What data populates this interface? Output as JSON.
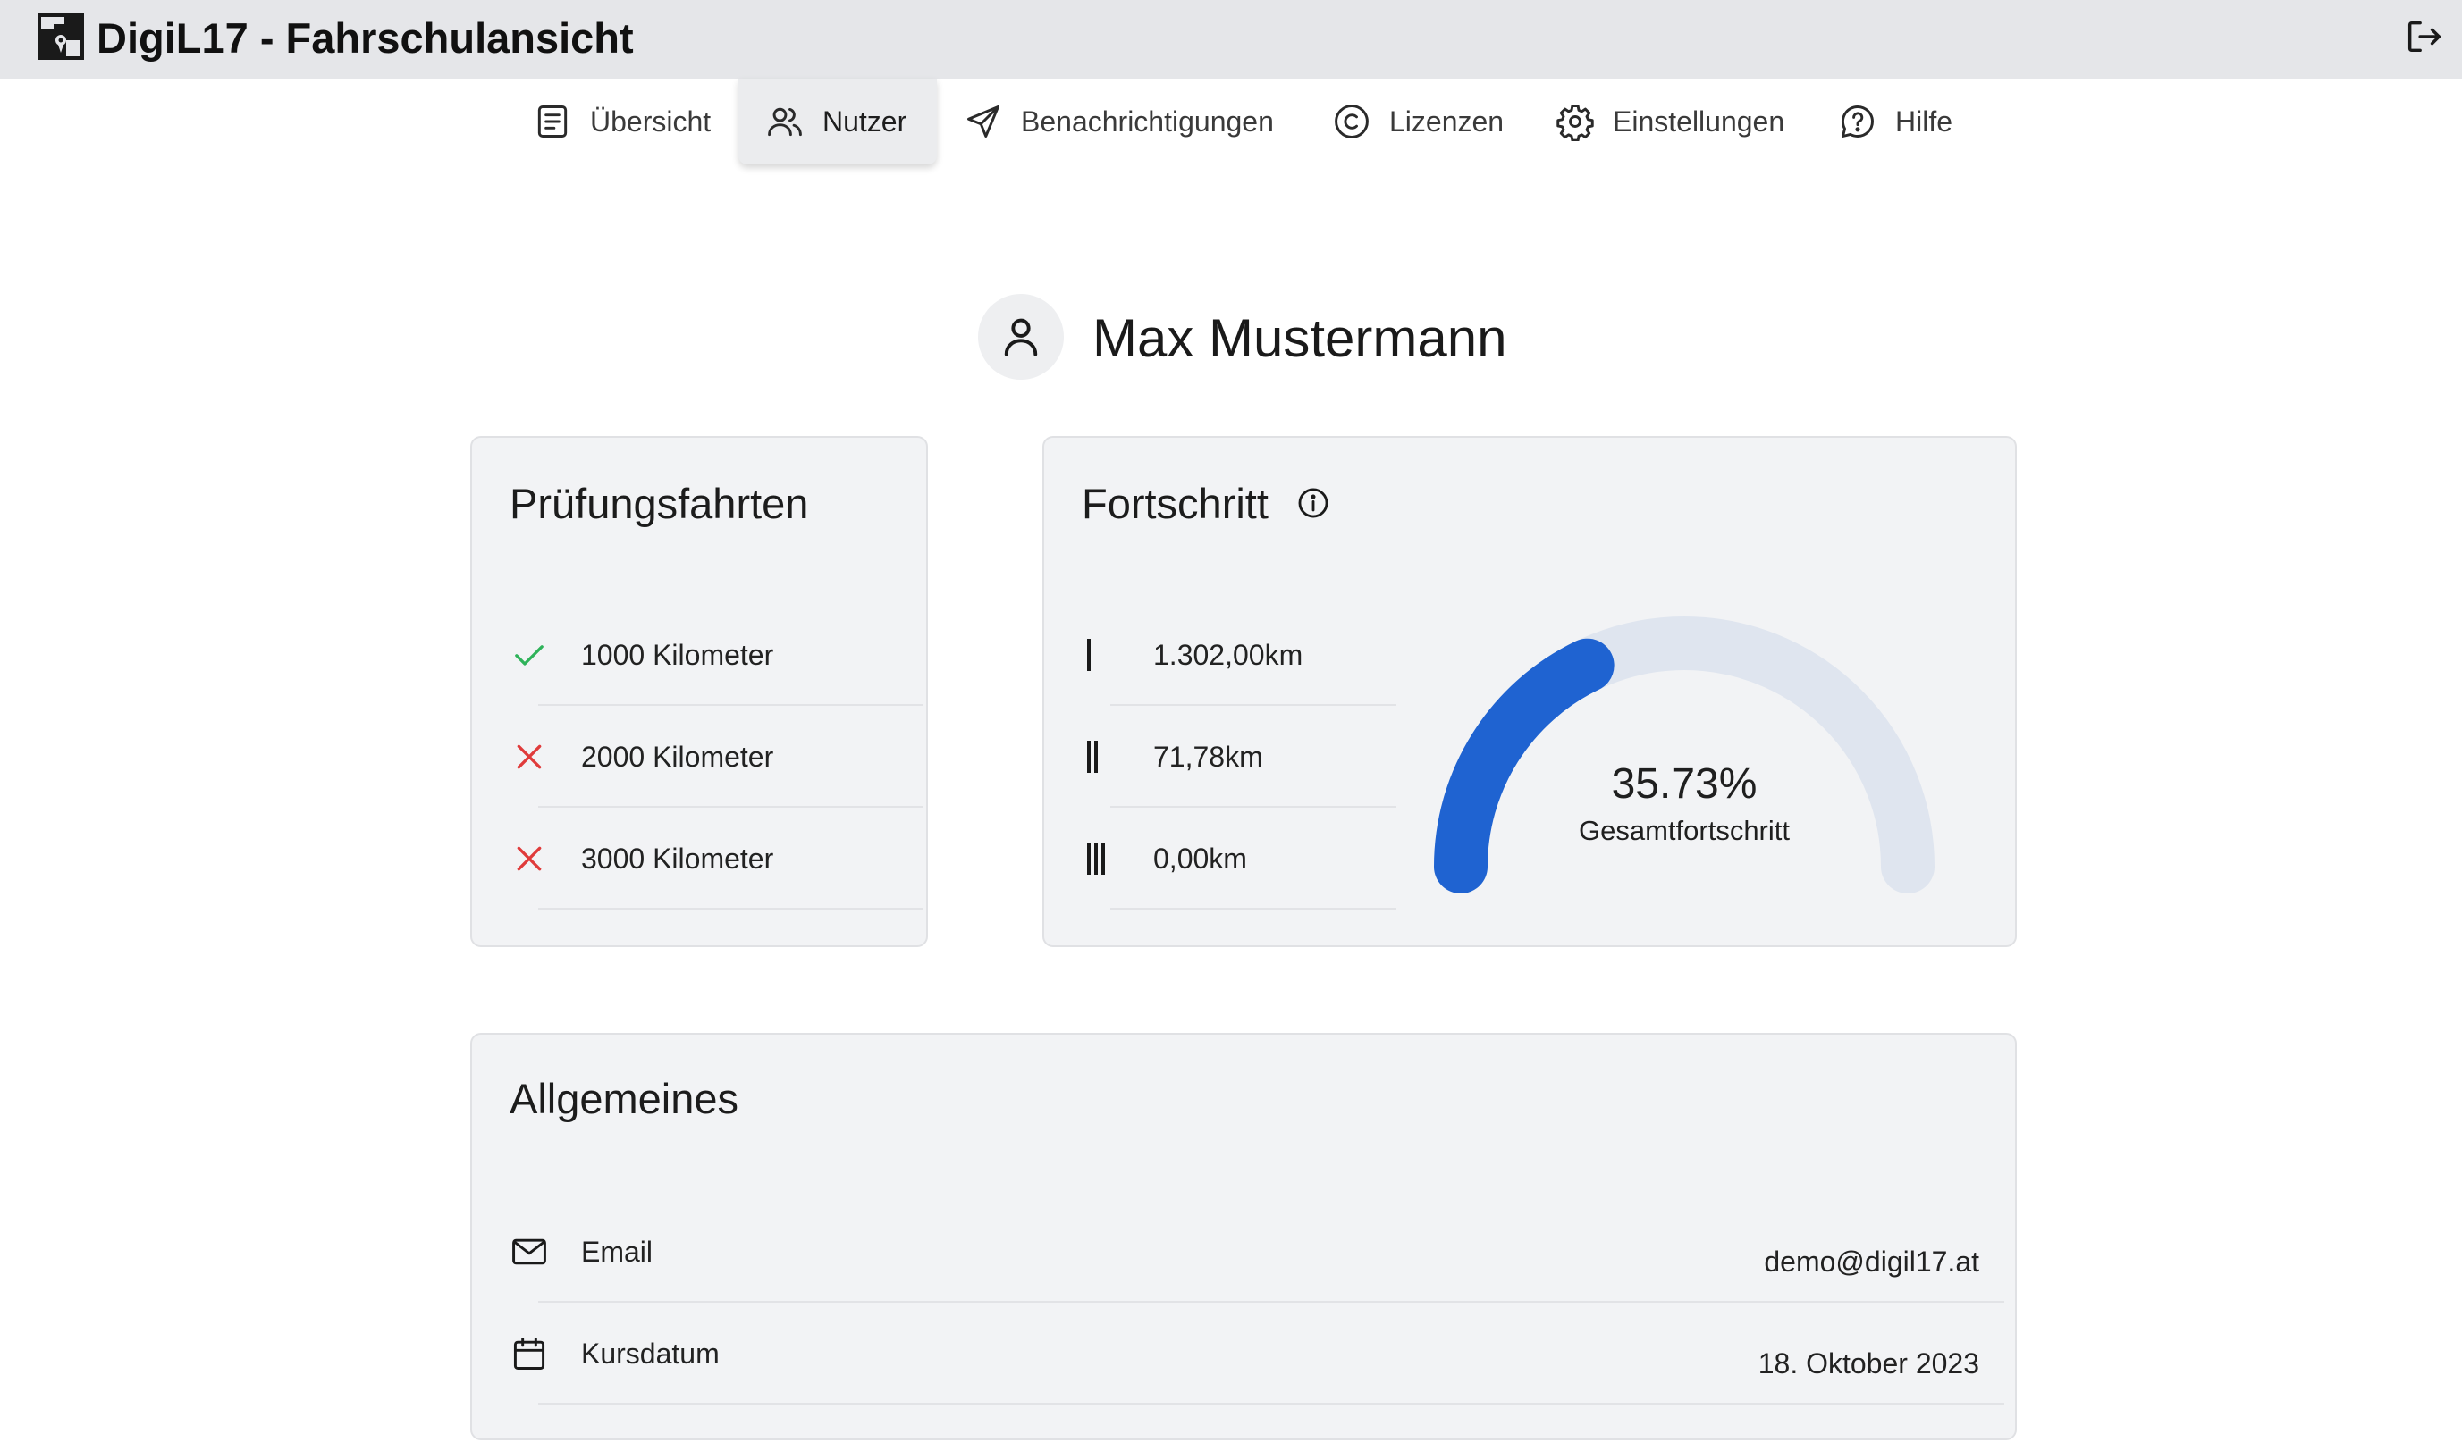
{
  "app": {
    "title": "DigiL17 - Fahrschulansicht",
    "logo_icon": "digil17-logo-icon",
    "logout_icon": "logout-icon"
  },
  "nav": {
    "tabs": [
      {
        "label": "Übersicht",
        "icon": "document-icon",
        "active": false
      },
      {
        "label": "Nutzer",
        "icon": "users-icon",
        "active": true
      },
      {
        "label": "Benachrichtigungen",
        "icon": "send-icon",
        "active": false
      },
      {
        "label": "Lizenzen",
        "icon": "copyright-icon",
        "active": false
      },
      {
        "label": "Einstellungen",
        "icon": "gear-icon",
        "active": false
      },
      {
        "label": "Hilfe",
        "icon": "help-chat-icon",
        "active": false
      }
    ]
  },
  "user": {
    "name": "Max Mustermann",
    "avatar_icon": "user-icon"
  },
  "pruefungsfahrten": {
    "title": "Prüfungsfahrten",
    "items": [
      {
        "label": "1000 Kilometer",
        "status": "done",
        "icon": "check-icon"
      },
      {
        "label": "2000 Kilometer",
        "status": "open",
        "icon": "cross-icon"
      },
      {
        "label": "3000 Kilometer",
        "status": "open",
        "icon": "cross-icon"
      }
    ]
  },
  "fortschritt": {
    "title": "Fortschritt",
    "info_icon": "info-icon",
    "stages": [
      {
        "label": "1.302,00km",
        "icon": "stage-1-icon"
      },
      {
        "label": "71,78km",
        "icon": "stage-2-icon"
      },
      {
        "label": "0,00km",
        "icon": "stage-3-icon"
      }
    ],
    "gauge": {
      "value_text": "35.73%",
      "fraction": 0.3573,
      "label": "Gesamtfortschritt"
    }
  },
  "allgemeines": {
    "title": "Allgemeines",
    "rows": [
      {
        "label": "Email",
        "value": "demo@digil17.at",
        "icon": "mail-icon"
      },
      {
        "label": "Kursdatum",
        "value": "18. Oktober 2023",
        "icon": "calendar-icon"
      }
    ]
  },
  "colors": {
    "accent_blue": "#1f63d1",
    "gauge_track": "#dfe5ef",
    "check_green": "#2fb35a",
    "cross_red": "#e03b3b",
    "topbar_bg": "#e5e6e9",
    "card_bg": "#f2f3f5"
  }
}
